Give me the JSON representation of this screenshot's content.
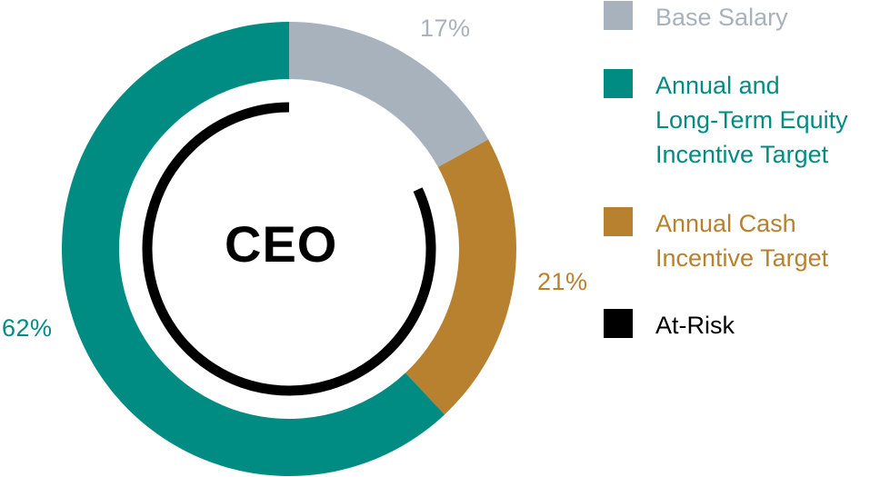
{
  "chart_data": {
    "type": "pie",
    "subtype": "donut",
    "title": "CEO",
    "categories": [
      "Base Salary",
      "Annual Cash Incentive Target",
      "Annual and Long-Term Equity Incentive Target"
    ],
    "values": [
      17,
      21,
      62
    ],
    "unit": "%",
    "colors": [
      "#a8b2bd",
      "#b8812f",
      "#008c82"
    ],
    "data_labels": [
      "17%",
      "21%",
      "62%"
    ],
    "annotations": [
      {
        "name": "At-Risk",
        "type": "arc",
        "covers": [
          "Annual Cash Incentive Target",
          "Annual and Long-Term Equity Incentive Target"
        ],
        "value": 83,
        "color": "#000000"
      }
    ],
    "legend_position": "right",
    "legend": [
      {
        "label": "Base Salary",
        "color": "#a8b2bd"
      },
      {
        "label": "Annual and\nLong-Term Equity\nIncentive Target",
        "color": "#008c82"
      },
      {
        "label": "Annual Cash\nIncentive Target",
        "color": "#b8812f"
      },
      {
        "label": "At-Risk",
        "color": "#000000"
      }
    ]
  },
  "center_label": "CEO",
  "labels": {
    "base_salary_pct": "17%",
    "cash_incentive_pct": "21%",
    "equity_incentive_pct": "62%"
  },
  "legend": {
    "items": [
      {
        "label": "Base Salary",
        "color": "#a8b2bd"
      },
      {
        "label": "Annual and\nLong-Term Equity\nIncentive Target",
        "color": "#008c82"
      },
      {
        "label": "Annual Cash\nIncentive Target",
        "color": "#b8812f"
      },
      {
        "label": "At-Risk",
        "color": "#000000"
      }
    ]
  }
}
